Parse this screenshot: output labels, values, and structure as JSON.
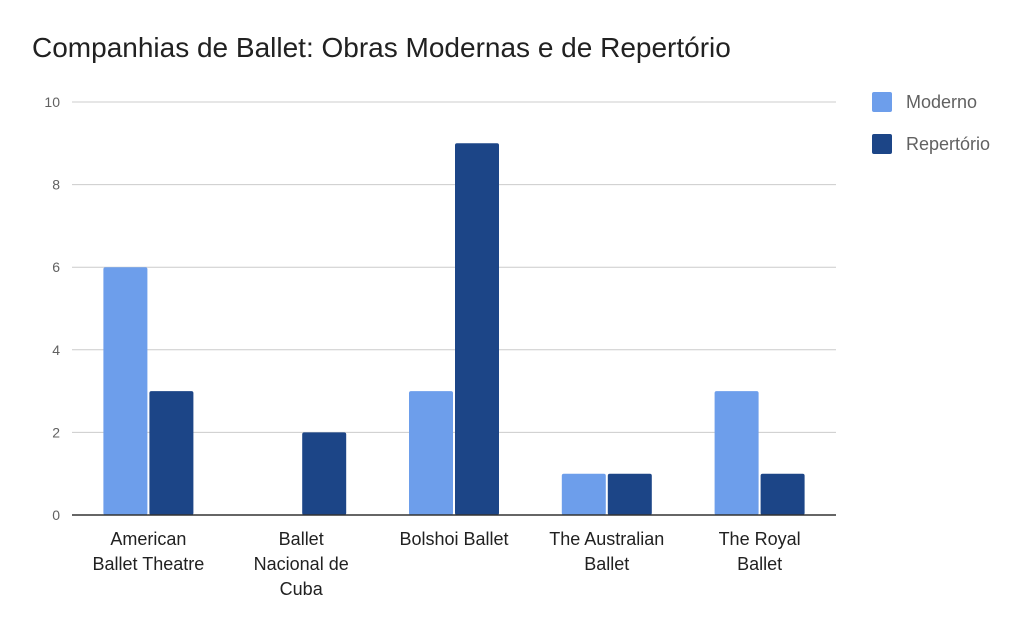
{
  "chart_data": {
    "type": "bar",
    "title": "Companhias de Ballet: Obras Modernas e de Repertório",
    "xlabel": "",
    "ylabel": "",
    "ylim": [
      0,
      10
    ],
    "yticks": [
      0,
      2,
      4,
      6,
      8,
      10
    ],
    "grid": true,
    "legend_position": "right",
    "categories": [
      [
        "American",
        "Ballet Theatre"
      ],
      [
        "Ballet",
        "Nacional de",
        "Cuba"
      ],
      [
        "Bolshoi Ballet"
      ],
      [
        "The Australian",
        "Ballet"
      ],
      [
        "The Royal",
        "Ballet"
      ]
    ],
    "series": [
      {
        "name": "Moderno",
        "color": "#6d9eeb",
        "values": [
          6,
          0,
          3,
          1,
          3
        ]
      },
      {
        "name": "Repertório",
        "color": "#1c4587",
        "values": [
          3,
          2,
          9,
          1,
          1
        ]
      }
    ]
  }
}
